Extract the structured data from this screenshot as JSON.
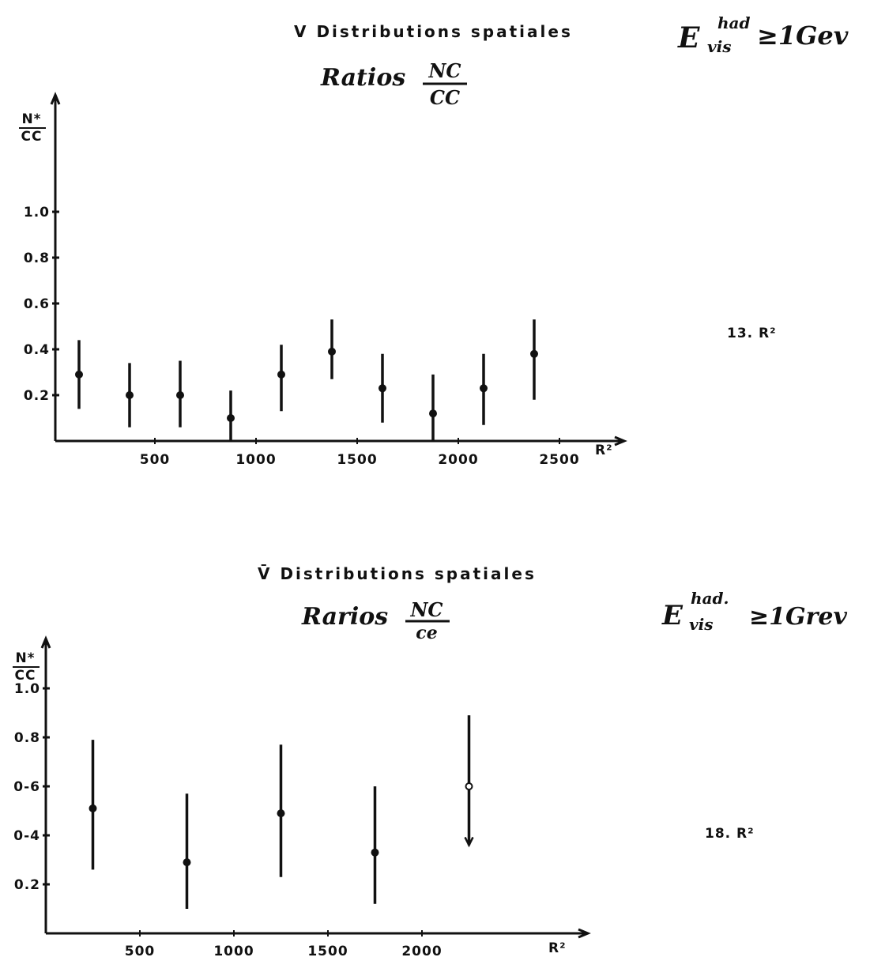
{
  "chart_data": [
    {
      "type": "scatter",
      "title": "V  Distributions  spatiales",
      "subtitle_prefix": "Ratios",
      "subtitle_num": "NC",
      "subtitle_den": "CC",
      "cut_E": "E",
      "cut_sup": "had",
      "cut_sub": "vis",
      "cut_rest": "≥1Gev",
      "side_label": "13. R²",
      "ylabel_num": "N*",
      "ylabel_den": "CC",
      "xlabel": "R²",
      "xlim": [
        0,
        2700
      ],
      "ylim": [
        0,
        1.6
      ],
      "x_ticks": [
        "500",
        "1000",
        "1500",
        "2000",
        "2500"
      ],
      "x_tick_values": [
        500,
        1000,
        1500,
        2000,
        2500
      ],
      "y_ticks": [
        "0.2",
        "0.4",
        "0.6",
        "0.8",
        "1.0"
      ],
      "y_tick_values": [
        0.2,
        0.4,
        0.6,
        0.8,
        1.0
      ],
      "points": [
        {
          "x": 125,
          "y": 0.29,
          "lo": 0.14,
          "hi": 0.44
        },
        {
          "x": 375,
          "y": 0.2,
          "lo": 0.06,
          "hi": 0.34
        },
        {
          "x": 625,
          "y": 0.2,
          "lo": 0.06,
          "hi": 0.35
        },
        {
          "x": 875,
          "y": 0.1,
          "lo": 0.0,
          "hi": 0.22
        },
        {
          "x": 1125,
          "y": 0.29,
          "lo": 0.13,
          "hi": 0.42
        },
        {
          "x": 1375,
          "y": 0.39,
          "lo": 0.27,
          "hi": 0.53
        },
        {
          "x": 1625,
          "y": 0.23,
          "lo": 0.08,
          "hi": 0.38
        },
        {
          "x": 1875,
          "y": 0.12,
          "lo": 0.0,
          "hi": 0.29
        },
        {
          "x": 2125,
          "y": 0.23,
          "lo": 0.07,
          "hi": 0.38
        },
        {
          "x": 2375,
          "y": 0.38,
          "lo": 0.18,
          "hi": 0.53
        }
      ]
    },
    {
      "type": "scatter",
      "title": "V̄  Distributions  spatiales",
      "subtitle_prefix": "Rarios",
      "subtitle_num": "NC",
      "subtitle_den": "ce",
      "cut_E": "E",
      "cut_sup": "had.",
      "cut_sub": "vis",
      "cut_rest": "≥1Grev",
      "side_label": "18. R²",
      "ylabel_num": "N*",
      "ylabel_den": "CC",
      "xlabel": "R²",
      "xlim": [
        0,
        2700
      ],
      "ylim": [
        0,
        1.1
      ],
      "x_ticks": [
        "500",
        "1000",
        "1500",
        "2000"
      ],
      "x_tick_values": [
        500,
        1000,
        1500,
        2000
      ],
      "y_ticks": [
        "0.2",
        "0.4",
        "0.6",
        "0.8",
        "1.0"
      ],
      "y_tick_labels_shown": [
        "0.2",
        "0-4",
        "0-6",
        "0.8",
        "1.0"
      ],
      "y_tick_values": [
        0.2,
        0.4,
        0.6,
        0.8,
        1.0
      ],
      "points": [
        {
          "x": 250,
          "y": 0.51,
          "lo": 0.26,
          "hi": 0.79
        },
        {
          "x": 750,
          "y": 0.29,
          "lo": 0.1,
          "hi": 0.57
        },
        {
          "x": 1250,
          "y": 0.49,
          "lo": 0.23,
          "hi": 0.77
        },
        {
          "x": 1750,
          "y": 0.33,
          "lo": 0.12,
          "hi": 0.6
        },
        {
          "x": 2250,
          "y": 0.6,
          "lo": 0.36,
          "hi": 0.89,
          "open": true,
          "arrow_down": true
        }
      ]
    }
  ]
}
